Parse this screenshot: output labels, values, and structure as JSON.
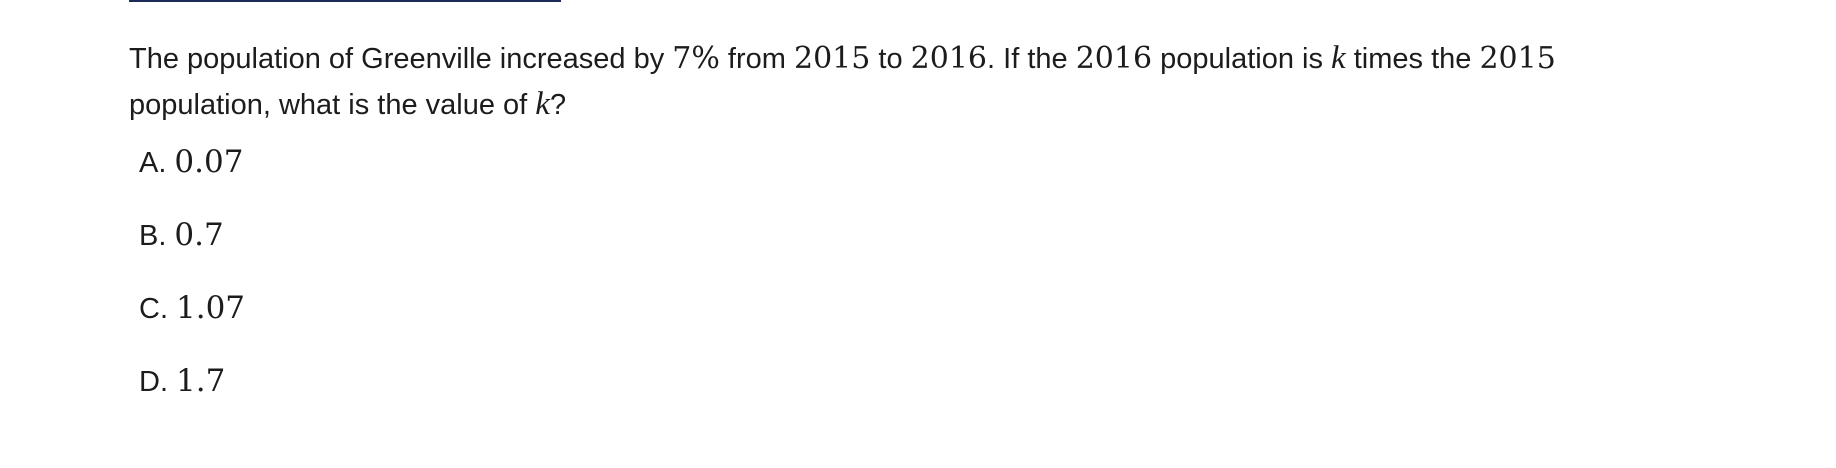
{
  "question": {
    "t1": "The population of Greenville increased by ",
    "m1": "7%",
    "t2": " from ",
    "m2": "2015",
    "t3": " to ",
    "m3": "2016",
    "t4": ". If the ",
    "m4": "2016",
    "t5": " population is ",
    "m5": "k",
    "t6": " times the ",
    "m6": "2015",
    "t7": " population, what is the value of ",
    "m7": "k",
    "t8": "?"
  },
  "choices": [
    {
      "letter": "A.",
      "value": "0.07"
    },
    {
      "letter": "B.",
      "value": "0.7"
    },
    {
      "letter": "C.",
      "value": "1.07"
    },
    {
      "letter": "D.",
      "value": "1.7"
    }
  ]
}
